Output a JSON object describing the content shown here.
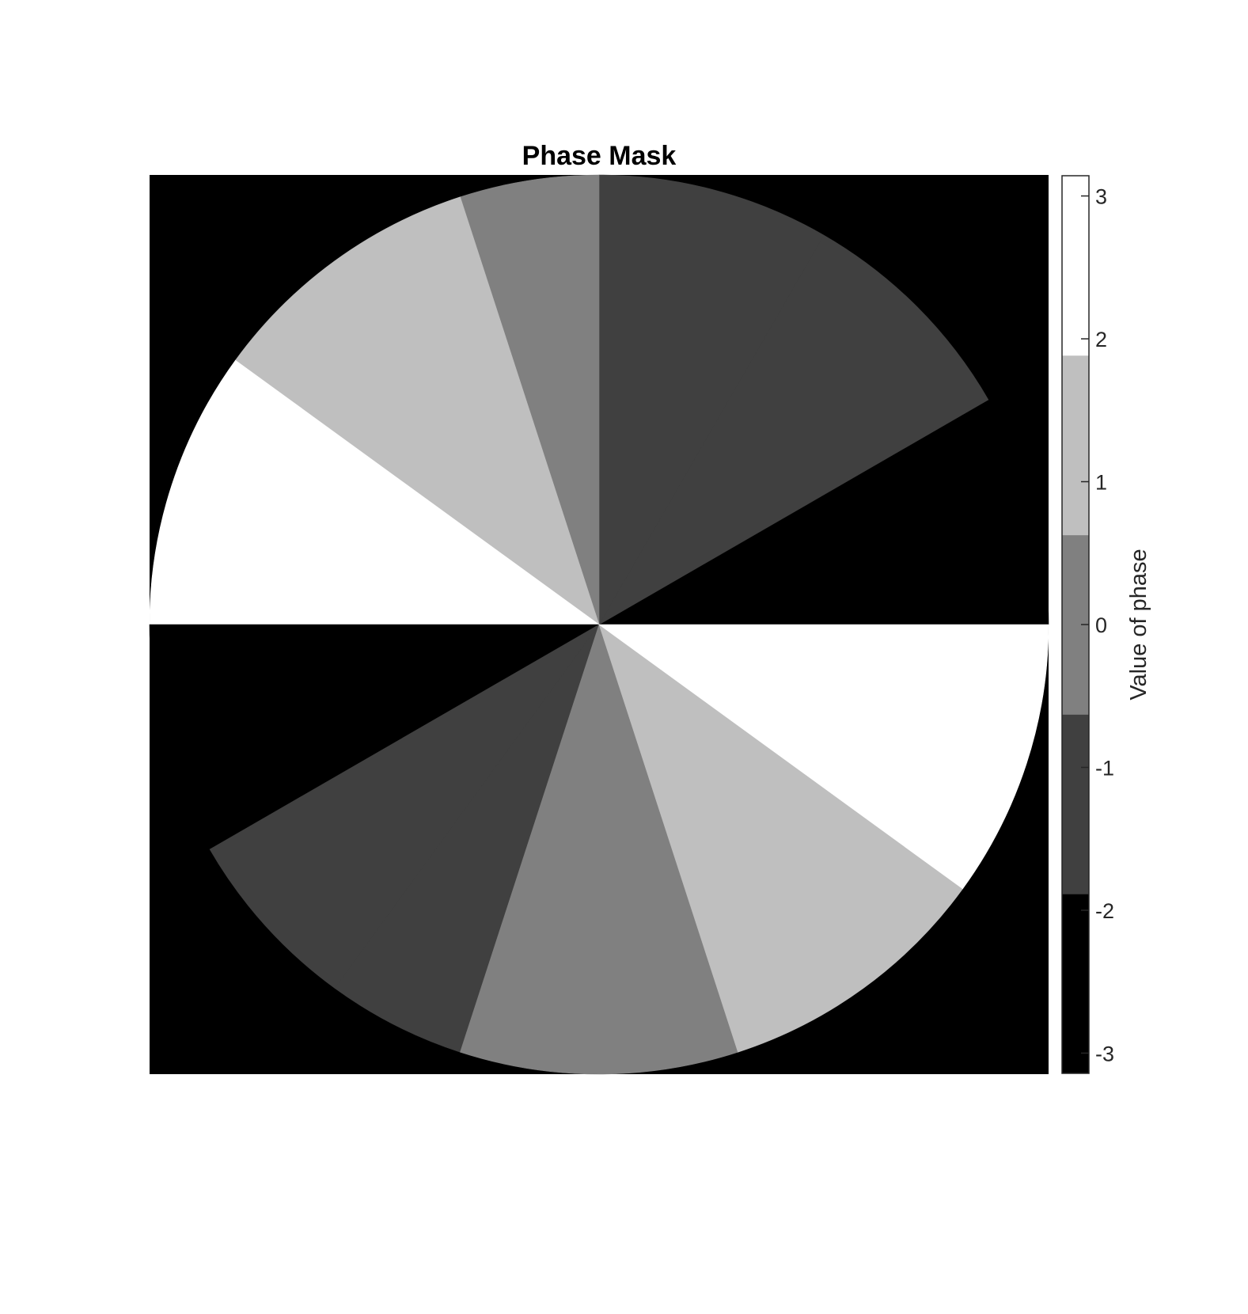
{
  "chart_data": {
    "type": "heatmap",
    "title": "Phase Mask",
    "description_kind": "sector phase mask inside unit circle, 12 sectors",
    "outside_value": -2.618,
    "sectors": [
      {
        "start_deg": 0,
        "end_deg": 30,
        "value": -2.618
      },
      {
        "start_deg": 30,
        "end_deg": 60,
        "value": -1.309
      },
      {
        "start_deg": 60,
        "end_deg": 90,
        "value": -1.309
      },
      {
        "start_deg": 90,
        "end_deg": 108,
        "value": 0
      },
      {
        "start_deg": 108,
        "end_deg": 144,
        "value": 1.309
      },
      {
        "start_deg": 144,
        "end_deg": 180,
        "value": 2.618
      },
      {
        "start_deg": 180,
        "end_deg": 210,
        "value": -2.618
      },
      {
        "start_deg": 210,
        "end_deg": 234,
        "value": -1.309
      },
      {
        "start_deg": 234,
        "end_deg": 252,
        "value": -1.309
      },
      {
        "start_deg": 252,
        "end_deg": 288,
        "value": 0
      },
      {
        "start_deg": 288,
        "end_deg": 324,
        "value": 1.309
      },
      {
        "start_deg": 324,
        "end_deg": 360,
        "value": 2.618
      }
    ],
    "colorbar": {
      "label": "Value of phase",
      "clim": [
        -3.1416,
        3.1416
      ],
      "ticks": [
        -3,
        -2,
        -1,
        0,
        1,
        2,
        3
      ],
      "tick_labels": [
        "-3",
        "-2",
        "-1",
        "0",
        "1",
        "2",
        "3"
      ],
      "levels": [
        {
          "from": -3.1416,
          "to": -1.885,
          "color": "#000000"
        },
        {
          "from": -1.885,
          "to": -0.628,
          "color": "#404040"
        },
        {
          "from": -0.628,
          "to": 0.628,
          "color": "#808080"
        },
        {
          "from": 0.628,
          "to": 1.885,
          "color": "#bfbfbf"
        },
        {
          "from": 1.885,
          "to": 3.1416,
          "color": "#ffffff"
        }
      ]
    }
  }
}
